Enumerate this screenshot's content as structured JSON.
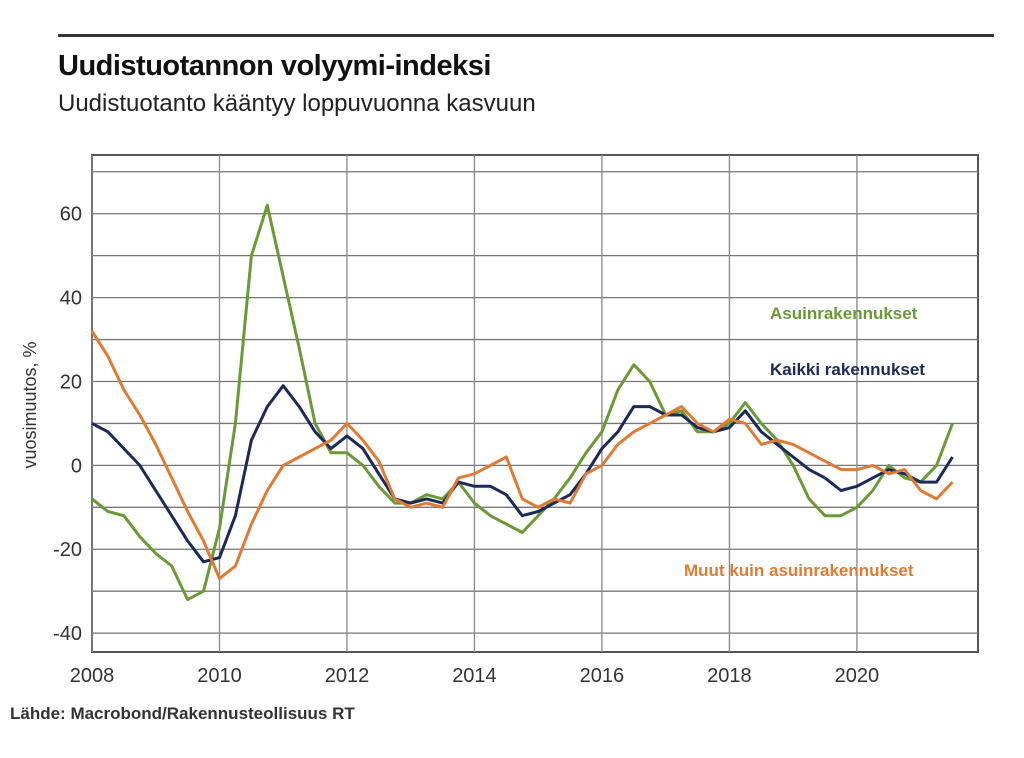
{
  "chart_data": {
    "type": "line",
    "title": "Uudistuotannon volyymi-indeksi",
    "subtitle": "Uudistuotanto kääntyy loppuvuonna kasvuun",
    "ylabel": "vuosimuutos, %",
    "xlabel": "",
    "source": "Lähde: Macrobond/Rakennusteollisuus RT",
    "xlim": [
      2008,
      2021.9
    ],
    "ylim": [
      -44.5,
      74
    ],
    "grid": true,
    "x_ticks": [
      "2008",
      "2010",
      "2012",
      "2014",
      "2016",
      "2018",
      "2020"
    ],
    "y_ticks": [
      "60",
      "40",
      "20",
      "0",
      "-20",
      "-40"
    ],
    "x": [
      2008,
      2008.25,
      2008.5,
      2008.75,
      2009,
      2009.25,
      2009.5,
      2009.75,
      2010,
      2010.25,
      2010.5,
      2010.75,
      2011,
      2011.25,
      2011.5,
      2011.75,
      2012,
      2012.25,
      2012.5,
      2012.75,
      2013,
      2013.25,
      2013.5,
      2013.75,
      2014,
      2014.25,
      2014.5,
      2014.75,
      2015,
      2015.25,
      2015.5,
      2015.75,
      2016,
      2016.25,
      2016.5,
      2016.75,
      2017,
      2017.25,
      2017.5,
      2017.75,
      2018,
      2018.25,
      2018.5,
      2018.75,
      2019,
      2019.25,
      2019.5,
      2019.75,
      2020,
      2020.25,
      2020.5,
      2020.75,
      2021,
      2021.25,
      2021.5
    ],
    "series": [
      {
        "name": "Asuinrakennukset",
        "color": "#6a9a35",
        "values": [
          -8,
          -11,
          -12,
          -17,
          -21,
          -24,
          -32,
          -30,
          -15,
          10,
          50,
          62,
          45,
          28,
          10,
          3,
          3,
          0,
          -5,
          -9,
          -9,
          -7,
          -8,
          -4,
          -9,
          -12,
          -14,
          -16,
          -12,
          -8,
          -3,
          3,
          8,
          18,
          24,
          20,
          12,
          13,
          8,
          8,
          10,
          15,
          10,
          6,
          0,
          -8,
          -12,
          -12,
          -10,
          -6,
          0,
          -3,
          -4,
          0,
          10
        ]
      },
      {
        "name": "Kaikki rakennukset",
        "color": "#1c2a5a",
        "values": [
          10,
          8,
          4,
          0,
          -6,
          -12,
          -18,
          -23,
          -22,
          -12,
          6,
          14,
          19,
          14,
          8,
          4,
          7,
          4,
          -2,
          -8,
          -9,
          -8,
          -9,
          -4,
          -5,
          -5,
          -7,
          -12,
          -11,
          -9,
          -7,
          -2,
          4,
          8,
          14,
          14,
          12,
          12,
          9,
          8,
          9,
          13,
          8,
          5,
          2,
          -1,
          -3,
          -6,
          -5,
          -3,
          -1,
          -2,
          -4,
          -4,
          2
        ]
      },
      {
        "name": "Muut kuin asuinrakennukset",
        "color": "#e07a35",
        "values": [
          32,
          26,
          18,
          12,
          5,
          -3,
          -11,
          -18,
          -27,
          -24,
          -14,
          -6,
          0,
          2,
          4,
          6,
          10,
          6,
          1,
          -8,
          -10,
          -9,
          -10,
          -3,
          -2,
          0,
          2,
          -8,
          -10,
          -8,
          -9,
          -2,
          0,
          5,
          8,
          10,
          12,
          14,
          10,
          8,
          11,
          10,
          5,
          6,
          5,
          3,
          1,
          -1,
          -1,
          0,
          -2,
          -1,
          -6,
          -8,
          -4
        ]
      }
    ]
  }
}
